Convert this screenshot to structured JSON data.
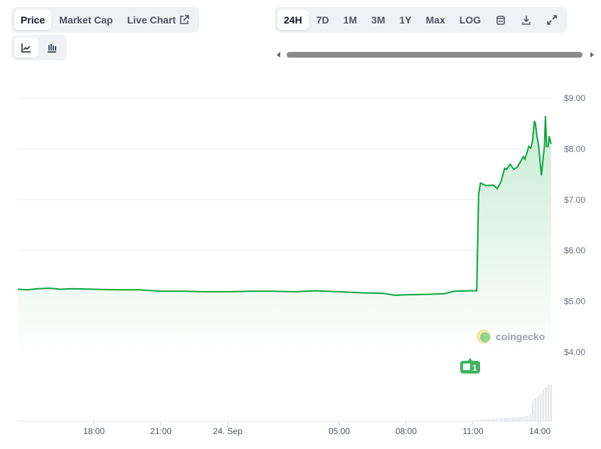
{
  "tabs": [
    {
      "label": "Price",
      "active": true
    },
    {
      "label": "Market Cap"
    },
    {
      "label": "Live Chart",
      "icon": "external-link-icon"
    }
  ],
  "chart_types": [
    {
      "icon": "line-chart-icon",
      "active": true
    },
    {
      "icon": "candlestick-chart-icon"
    }
  ],
  "ranges": [
    {
      "label": "24H",
      "active": true
    },
    {
      "label": "7D"
    },
    {
      "label": "1M"
    },
    {
      "label": "3M"
    },
    {
      "label": "1Y"
    },
    {
      "label": "Max"
    },
    {
      "label": "LOG"
    }
  ],
  "toolbar_icons": [
    "calendar-icon",
    "download-icon",
    "fullscreen-icon"
  ],
  "watermark": "coingecko",
  "news_badge": "1",
  "colors": {
    "line": "#0aa53b",
    "fill": "#c9ecd4",
    "volume": "#e5e7eb",
    "badge": "#3cb55f"
  },
  "chart_data": {
    "type": "area",
    "ylim": [
      3.5,
      9.3
    ],
    "yticks": [
      "$4.00",
      "$5.00",
      "$6.00",
      "$7.00",
      "$8.00",
      "$9.00"
    ],
    "ytick_values": [
      4,
      5,
      6,
      7,
      8,
      9
    ],
    "xticks": [
      {
        "label": "18:00",
        "t": "23 Sep 18:00"
      },
      {
        "label": "21:00",
        "t": "23 Sep 21:00"
      },
      {
        "label": "24. Sep",
        "t": "24 Sep 00:00"
      },
      {
        "label": "05:00",
        "t": "24 Sep 05:00"
      },
      {
        "label": "08:00",
        "t": "24 Sep 08:00"
      },
      {
        "label": "11:00",
        "t": "24 Sep 11:00"
      },
      {
        "label": "14:00",
        "t": "24 Sep 14:00"
      }
    ],
    "grid": true,
    "series": [
      {
        "points": [
          [
            "23 Sep 14:35",
            5.24
          ],
          [
            "23 Sep 15:00",
            5.23
          ],
          [
            "23 Sep 15:30",
            5.25
          ],
          [
            "23 Sep 16:00",
            5.26
          ],
          [
            "23 Sep 16:30",
            5.24
          ],
          [
            "23 Sep 17:00",
            5.25
          ],
          [
            "23 Sep 18:00",
            5.24
          ],
          [
            "23 Sep 19:00",
            5.23
          ],
          [
            "23 Sep 20:00",
            5.23
          ],
          [
            "23 Sep 21:00",
            5.2
          ],
          [
            "23 Sep 22:00",
            5.2
          ],
          [
            "23 Sep 23:00",
            5.19
          ],
          [
            "24 Sep 00:00",
            5.19
          ],
          [
            "24 Sep 01:00",
            5.2
          ],
          [
            "24 Sep 02:00",
            5.2
          ],
          [
            "24 Sep 03:00",
            5.19
          ],
          [
            "24 Sep 04:00",
            5.21
          ],
          [
            "24 Sep 05:00",
            5.19
          ],
          [
            "24 Sep 06:00",
            5.17
          ],
          [
            "24 Sep 07:00",
            5.16
          ],
          [
            "24 Sep 07:30",
            5.12
          ],
          [
            "24 Sep 08:00",
            5.13
          ],
          [
            "24 Sep 09:00",
            5.14
          ],
          [
            "24 Sep 09:40",
            5.15
          ],
          [
            "24 Sep 10:10",
            5.2
          ],
          [
            "24 Sep 10:50",
            5.21
          ],
          [
            "24 Sep 11:10",
            5.21
          ],
          [
            "24 Sep 11:15",
            7.1
          ],
          [
            "24 Sep 11:20",
            7.33
          ],
          [
            "24 Sep 11:35",
            7.28
          ],
          [
            "24 Sep 11:55",
            7.29
          ],
          [
            "24 Sep 12:05",
            7.22
          ],
          [
            "24 Sep 12:15",
            7.35
          ],
          [
            "24 Sep 12:25",
            7.62
          ],
          [
            "24 Sep 12:30",
            7.6
          ],
          [
            "24 Sep 12:40",
            7.7
          ],
          [
            "24 Sep 12:50",
            7.6
          ],
          [
            "24 Sep 13:00",
            7.65
          ],
          [
            "24 Sep 13:15",
            7.85
          ],
          [
            "24 Sep 13:20",
            7.8
          ],
          [
            "24 Sep 13:30",
            8.05
          ],
          [
            "24 Sep 13:35",
            8.02
          ],
          [
            "24 Sep 13:40",
            8.15
          ],
          [
            "24 Sep 13:45",
            8.55
          ],
          [
            "24 Sep 13:48",
            8.5
          ],
          [
            "24 Sep 13:52",
            8.25
          ],
          [
            "24 Sep 13:56",
            8.1
          ],
          [
            "24 Sep 14:04",
            7.48
          ],
          [
            "24 Sep 14:12",
            8.05
          ],
          [
            "24 Sep 14:15",
            8.65
          ],
          [
            "24 Sep 14:18",
            8.05
          ],
          [
            "24 Sep 14:22",
            8.05
          ],
          [
            "24 Sep 14:25",
            8.25
          ],
          [
            "24 Sep 14:30",
            8.1
          ]
        ]
      }
    ],
    "volume": [
      1,
      1,
      1.5,
      1.5,
      2,
      2,
      2,
      2.5,
      2.5,
      2.5,
      3,
      3,
      3,
      3,
      3.5,
      3.5,
      3.5,
      4,
      4,
      4.5,
      5,
      6,
      18,
      20,
      22,
      24,
      28,
      30,
      32,
      32
    ]
  }
}
